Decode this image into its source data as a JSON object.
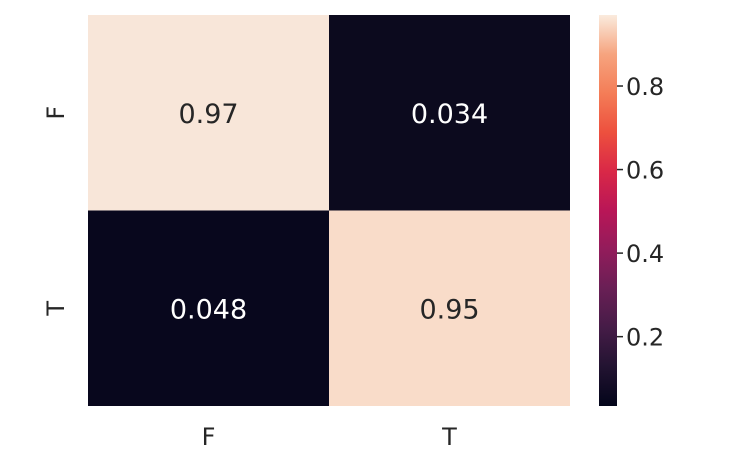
{
  "chart_data": {
    "type": "heatmap",
    "title": "",
    "xlabel": "",
    "ylabel": "",
    "x_categories": [
      "F",
      "T"
    ],
    "y_categories": [
      "F",
      "T"
    ],
    "values": [
      [
        0.97,
        0.034
      ],
      [
        0.048,
        0.95
      ]
    ],
    "cell_labels": [
      [
        "0.97",
        "0.034"
      ],
      [
        "0.048",
        "0.95"
      ]
    ],
    "colormap": "rocket",
    "colorbar": {
      "range": [
        0.034,
        0.97
      ],
      "ticks": [
        0.2,
        0.4,
        0.6,
        0.8
      ],
      "tick_labels": [
        "0.2",
        "0.4",
        "0.6",
        "0.8"
      ]
    },
    "colors": {
      "low": "#0c0a1e",
      "high": "#f8e6d9",
      "annotation_dark": "#262626",
      "annotation_light": "#ffffff"
    },
    "grid": false,
    "legend": "none"
  }
}
